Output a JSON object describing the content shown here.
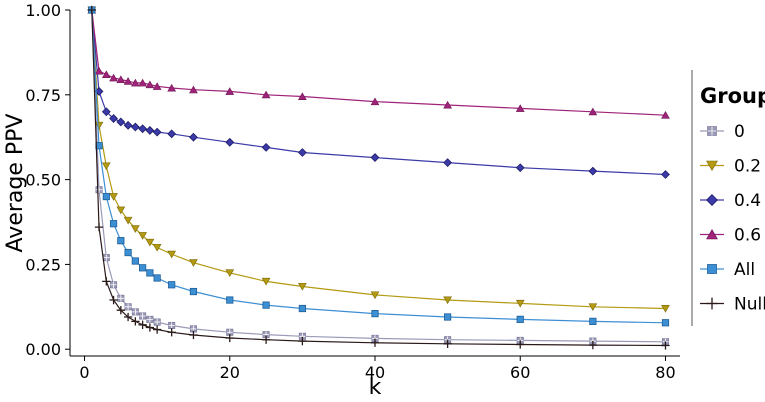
{
  "chart_data": {
    "type": "line",
    "xlabel": "k",
    "ylabel": "Average PPV",
    "xlim": [
      -2,
      82
    ],
    "ylim": [
      -0.02,
      1.0
    ],
    "xticks": [
      0,
      20,
      40,
      60,
      80
    ],
    "yticks": [
      0.0,
      0.25,
      0.5,
      0.75,
      1.0
    ],
    "xtick_labels": [
      "0",
      "20",
      "40",
      "60",
      "80"
    ],
    "ytick_labels": [
      "0.00",
      "0.25",
      "0.50",
      "0.75",
      "1.00"
    ],
    "grid": false,
    "legend": {
      "title": "Group",
      "position": "right"
    },
    "x": [
      1,
      2,
      3,
      4,
      5,
      6,
      7,
      8,
      9,
      10,
      12,
      15,
      20,
      25,
      30,
      40,
      50,
      60,
      70,
      80
    ],
    "series": [
      {
        "name": "0",
        "color": "#9a9ab8",
        "marker": "square-cross",
        "values": [
          1.0,
          0.47,
          0.27,
          0.19,
          0.15,
          0.125,
          0.11,
          0.098,
          0.088,
          0.08,
          0.07,
          0.06,
          0.05,
          0.043,
          0.038,
          0.032,
          0.028,
          0.026,
          0.024,
          0.022
        ]
      },
      {
        "name": "0.2",
        "color": "#b39a12",
        "marker": "triangle-down",
        "values": [
          1.0,
          0.66,
          0.54,
          0.45,
          0.41,
          0.38,
          0.355,
          0.335,
          0.315,
          0.3,
          0.28,
          0.255,
          0.225,
          0.2,
          0.185,
          0.16,
          0.145,
          0.135,
          0.125,
          0.12
        ]
      },
      {
        "name": "0.4",
        "color": "#3b3aa8",
        "marker": "diamond",
        "values": [
          1.0,
          0.76,
          0.7,
          0.68,
          0.67,
          0.66,
          0.655,
          0.65,
          0.645,
          0.64,
          0.635,
          0.625,
          0.61,
          0.595,
          0.58,
          0.565,
          0.55,
          0.535,
          0.525,
          0.515
        ]
      },
      {
        "name": "0.6",
        "color": "#a0237a",
        "marker": "triangle-up",
        "values": [
          1.0,
          0.82,
          0.81,
          0.8,
          0.795,
          0.79,
          0.785,
          0.785,
          0.78,
          0.775,
          0.77,
          0.765,
          0.76,
          0.75,
          0.745,
          0.73,
          0.72,
          0.71,
          0.7,
          0.69
        ]
      },
      {
        "name": "All",
        "color": "#3d8fd4",
        "marker": "square",
        "values": [
          1.0,
          0.6,
          0.45,
          0.37,
          0.32,
          0.285,
          0.26,
          0.24,
          0.225,
          0.21,
          0.19,
          0.17,
          0.145,
          0.13,
          0.12,
          0.105,
          0.095,
          0.088,
          0.082,
          0.078
        ]
      },
      {
        "name": "Null",
        "color": "#2b1a1a",
        "marker": "plus",
        "values": [
          1.0,
          0.36,
          0.2,
          0.145,
          0.115,
          0.095,
          0.082,
          0.072,
          0.064,
          0.058,
          0.05,
          0.042,
          0.033,
          0.028,
          0.024,
          0.019,
          0.016,
          0.014,
          0.012,
          0.011
        ]
      }
    ]
  }
}
